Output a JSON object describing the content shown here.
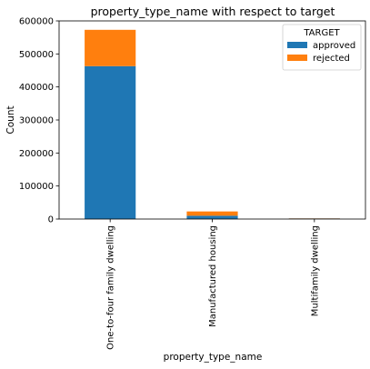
{
  "chart_data": {
    "type": "bar",
    "stacked": true,
    "title": "property_type_name with respect to target",
    "xlabel": "property_type_name",
    "ylabel": "Count",
    "ylim": [
      0,
      600000
    ],
    "yticks": [
      0,
      100000,
      200000,
      300000,
      400000,
      500000,
      600000
    ],
    "categories": [
      "One-to-four family dwelling",
      "Manufactured housing",
      "Multifamily dwelling"
    ],
    "series": [
      {
        "name": "approved",
        "color": "#1f77b4",
        "values": [
          463000,
          10000,
          1500
        ]
      },
      {
        "name": "rejected",
        "color": "#ff7f0e",
        "values": [
          110000,
          13000,
          500
        ]
      }
    ],
    "legend": {
      "title": "TARGET",
      "position": "top-right"
    },
    "grid": false
  }
}
